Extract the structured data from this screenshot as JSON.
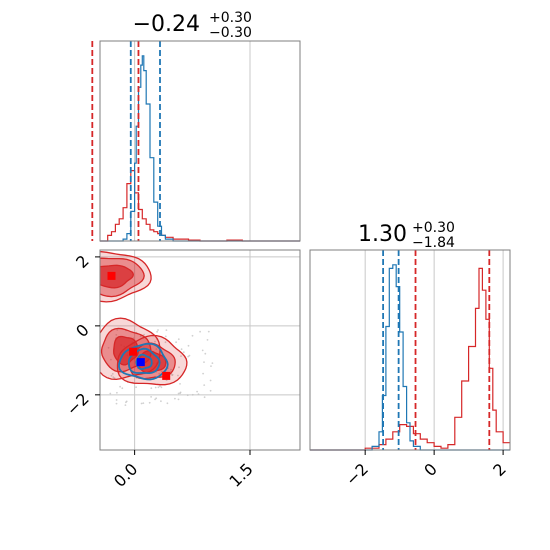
{
  "chart_data": [
    {
      "type": "histogram",
      "panel": "marginal-param-1",
      "title": {
        "value": "−0.24",
        "upper": "+0.30",
        "lower": "−0.30"
      },
      "xlim": [
        -0.45,
        2.15
      ],
      "series": [
        {
          "name": "",
          "color": "#d62728",
          "x": [
            -0.45,
            -0.4,
            -0.35,
            -0.3,
            -0.25,
            -0.2,
            -0.15,
            -0.1,
            -0.05,
            0.0,
            0.05,
            0.1,
            0.15,
            0.2,
            0.25,
            0.3,
            0.35,
            0.4,
            0.45,
            0.5,
            0.55,
            0.6,
            0.65,
            0.7,
            0.75,
            0.8,
            0.85,
            0.9,
            1.0,
            1.2,
            1.4,
            1.6,
            1.8,
            2.0,
            2.15
          ],
          "density": [
            0.0,
            0.0,
            0.03,
            0.05,
            0.09,
            0.12,
            0.18,
            0.31,
            0.38,
            0.26,
            0.17,
            0.12,
            0.09,
            0.06,
            0.05,
            0.04,
            0.03,
            0.02,
            0.02,
            0.01,
            0.01,
            0.01,
            0.01,
            0.005,
            0.005,
            0.005,
            0.0,
            0.0,
            0.0,
            0.005,
            0.0,
            0.0,
            0.0,
            0.0,
            0.0
          ]
        },
        {
          "name": "",
          "color": "#1f77b4",
          "x": [
            -0.45,
            -0.3,
            -0.2,
            -0.15,
            -0.1,
            -0.05,
            0.0,
            0.02,
            0.05,
            0.08,
            0.1,
            0.12,
            0.15,
            0.2,
            0.25,
            0.3,
            0.35,
            0.4,
            0.5,
            0.7,
            1.0,
            1.5,
            2.15
          ],
          "density": [
            0.0,
            0.0,
            0.0,
            0.01,
            0.04,
            0.16,
            0.42,
            0.62,
            0.83,
            0.95,
            1.0,
            0.92,
            0.74,
            0.45,
            0.21,
            0.08,
            0.03,
            0.01,
            0.0,
            0.0,
            0.0,
            0.0,
            0.0
          ]
        }
      ],
      "quantile_lines": [
        {
          "x": -0.55,
          "color": "#d62728"
        },
        {
          "x": 0.05,
          "color": "#d62728"
        },
        {
          "x": -0.05,
          "color": "#1f77b4"
        },
        {
          "x": 0.33,
          "color": "#1f77b4"
        }
      ],
      "ref_lines": [
        0.0,
        1.5
      ]
    },
    {
      "type": "histogram",
      "panel": "marginal-param-2",
      "title": {
        "value": "1.30",
        "upper": "+0.30",
        "lower": "−1.84"
      },
      "xlim": [
        -3.6,
        2.2
      ],
      "xticks": [
        "−2",
        "0",
        "2"
      ],
      "xtick_values": [
        -2,
        0,
        2
      ],
      "series": [
        {
          "name": "",
          "color": "#d62728",
          "x": [
            -3.6,
            -2.4,
            -2.0,
            -1.6,
            -1.4,
            -1.2,
            -1.0,
            -0.8,
            -0.6,
            -0.4,
            -0.2,
            0.0,
            0.2,
            0.4,
            0.6,
            0.8,
            1.0,
            1.2,
            1.3,
            1.4,
            1.5,
            1.6,
            1.7,
            1.8,
            2.0,
            2.2
          ],
          "density": [
            0.0,
            0.0,
            0.01,
            0.03,
            0.06,
            0.1,
            0.14,
            0.13,
            0.09,
            0.06,
            0.04,
            0.02,
            0.01,
            0.03,
            0.18,
            0.38,
            0.57,
            0.78,
            1.0,
            0.88,
            0.72,
            0.45,
            0.22,
            0.1,
            0.04,
            0.0
          ]
        },
        {
          "name": "",
          "color": "#1f77b4",
          "x": [
            -3.6,
            -2.0,
            -1.8,
            -1.6,
            -1.5,
            -1.4,
            -1.3,
            -1.2,
            -1.1,
            -1.0,
            -0.9,
            -0.8,
            -0.7,
            -0.6,
            -0.4,
            2.2
          ],
          "density": [
            0.0,
            0.0,
            0.02,
            0.1,
            0.3,
            0.68,
            1.0,
            1.02,
            0.9,
            0.65,
            0.35,
            0.15,
            0.05,
            0.02,
            0.0,
            0.0
          ]
        }
      ],
      "quantile_lines": [
        {
          "x": -0.54,
          "color": "#d62728"
        },
        {
          "x": 1.6,
          "color": "#d62728"
        },
        {
          "x": -1.48,
          "color": "#1f77b4"
        },
        {
          "x": -1.03,
          "color": "#1f77b4"
        }
      ],
      "ref_lines": [
        -2,
        0,
        2
      ]
    },
    {
      "type": "contour",
      "panel": "joint-param-1-vs-param-2",
      "xlim": [
        -0.45,
        2.15
      ],
      "ylim": [
        -3.6,
        2.2
      ],
      "xticks": [
        "0.0",
        "1.5"
      ],
      "xtick_values": [
        0.0,
        1.5
      ],
      "yticks": [
        "2",
        "0",
        "−2"
      ],
      "ytick_values": [
        2,
        0,
        -2
      ],
      "red_modes": [
        {
          "cx": -0.3,
          "cy": 1.45,
          "rx": [
            0.27,
            0.4,
            0.49
          ],
          "ry": [
            0.32,
            0.55,
            0.7
          ]
        },
        {
          "cx": -0.12,
          "cy": -0.7,
          "rx": [
            0.16,
            0.32,
            0.44
          ],
          "ry": [
            0.4,
            0.6,
            0.85
          ]
        },
        {
          "cx": 0.22,
          "cy": -1.05,
          "rx": [
            0.18,
            0.3,
            0.45
          ],
          "ry": [
            0.3,
            0.5,
            0.7
          ]
        }
      ],
      "blue_contours": {
        "cx": 0.12,
        "cy": -1.05,
        "rx": [
          0.1,
          0.2,
          0.31
        ],
        "ry": [
          0.2,
          0.35,
          0.5
        ]
      },
      "markers": [
        {
          "x": -0.3,
          "y": 1.45,
          "color": "#ff0000"
        },
        {
          "x": -0.02,
          "y": -0.75,
          "color": "#ff0000"
        },
        {
          "x": 0.41,
          "y": -1.45,
          "color": "#ff0000"
        },
        {
          "x": 0.08,
          "y": -1.05,
          "color": "#0000ff"
        }
      ],
      "ref_lines_x": [
        0.0,
        1.5
      ],
      "ref_lines_y": [
        2,
        0,
        -2
      ]
    }
  ]
}
